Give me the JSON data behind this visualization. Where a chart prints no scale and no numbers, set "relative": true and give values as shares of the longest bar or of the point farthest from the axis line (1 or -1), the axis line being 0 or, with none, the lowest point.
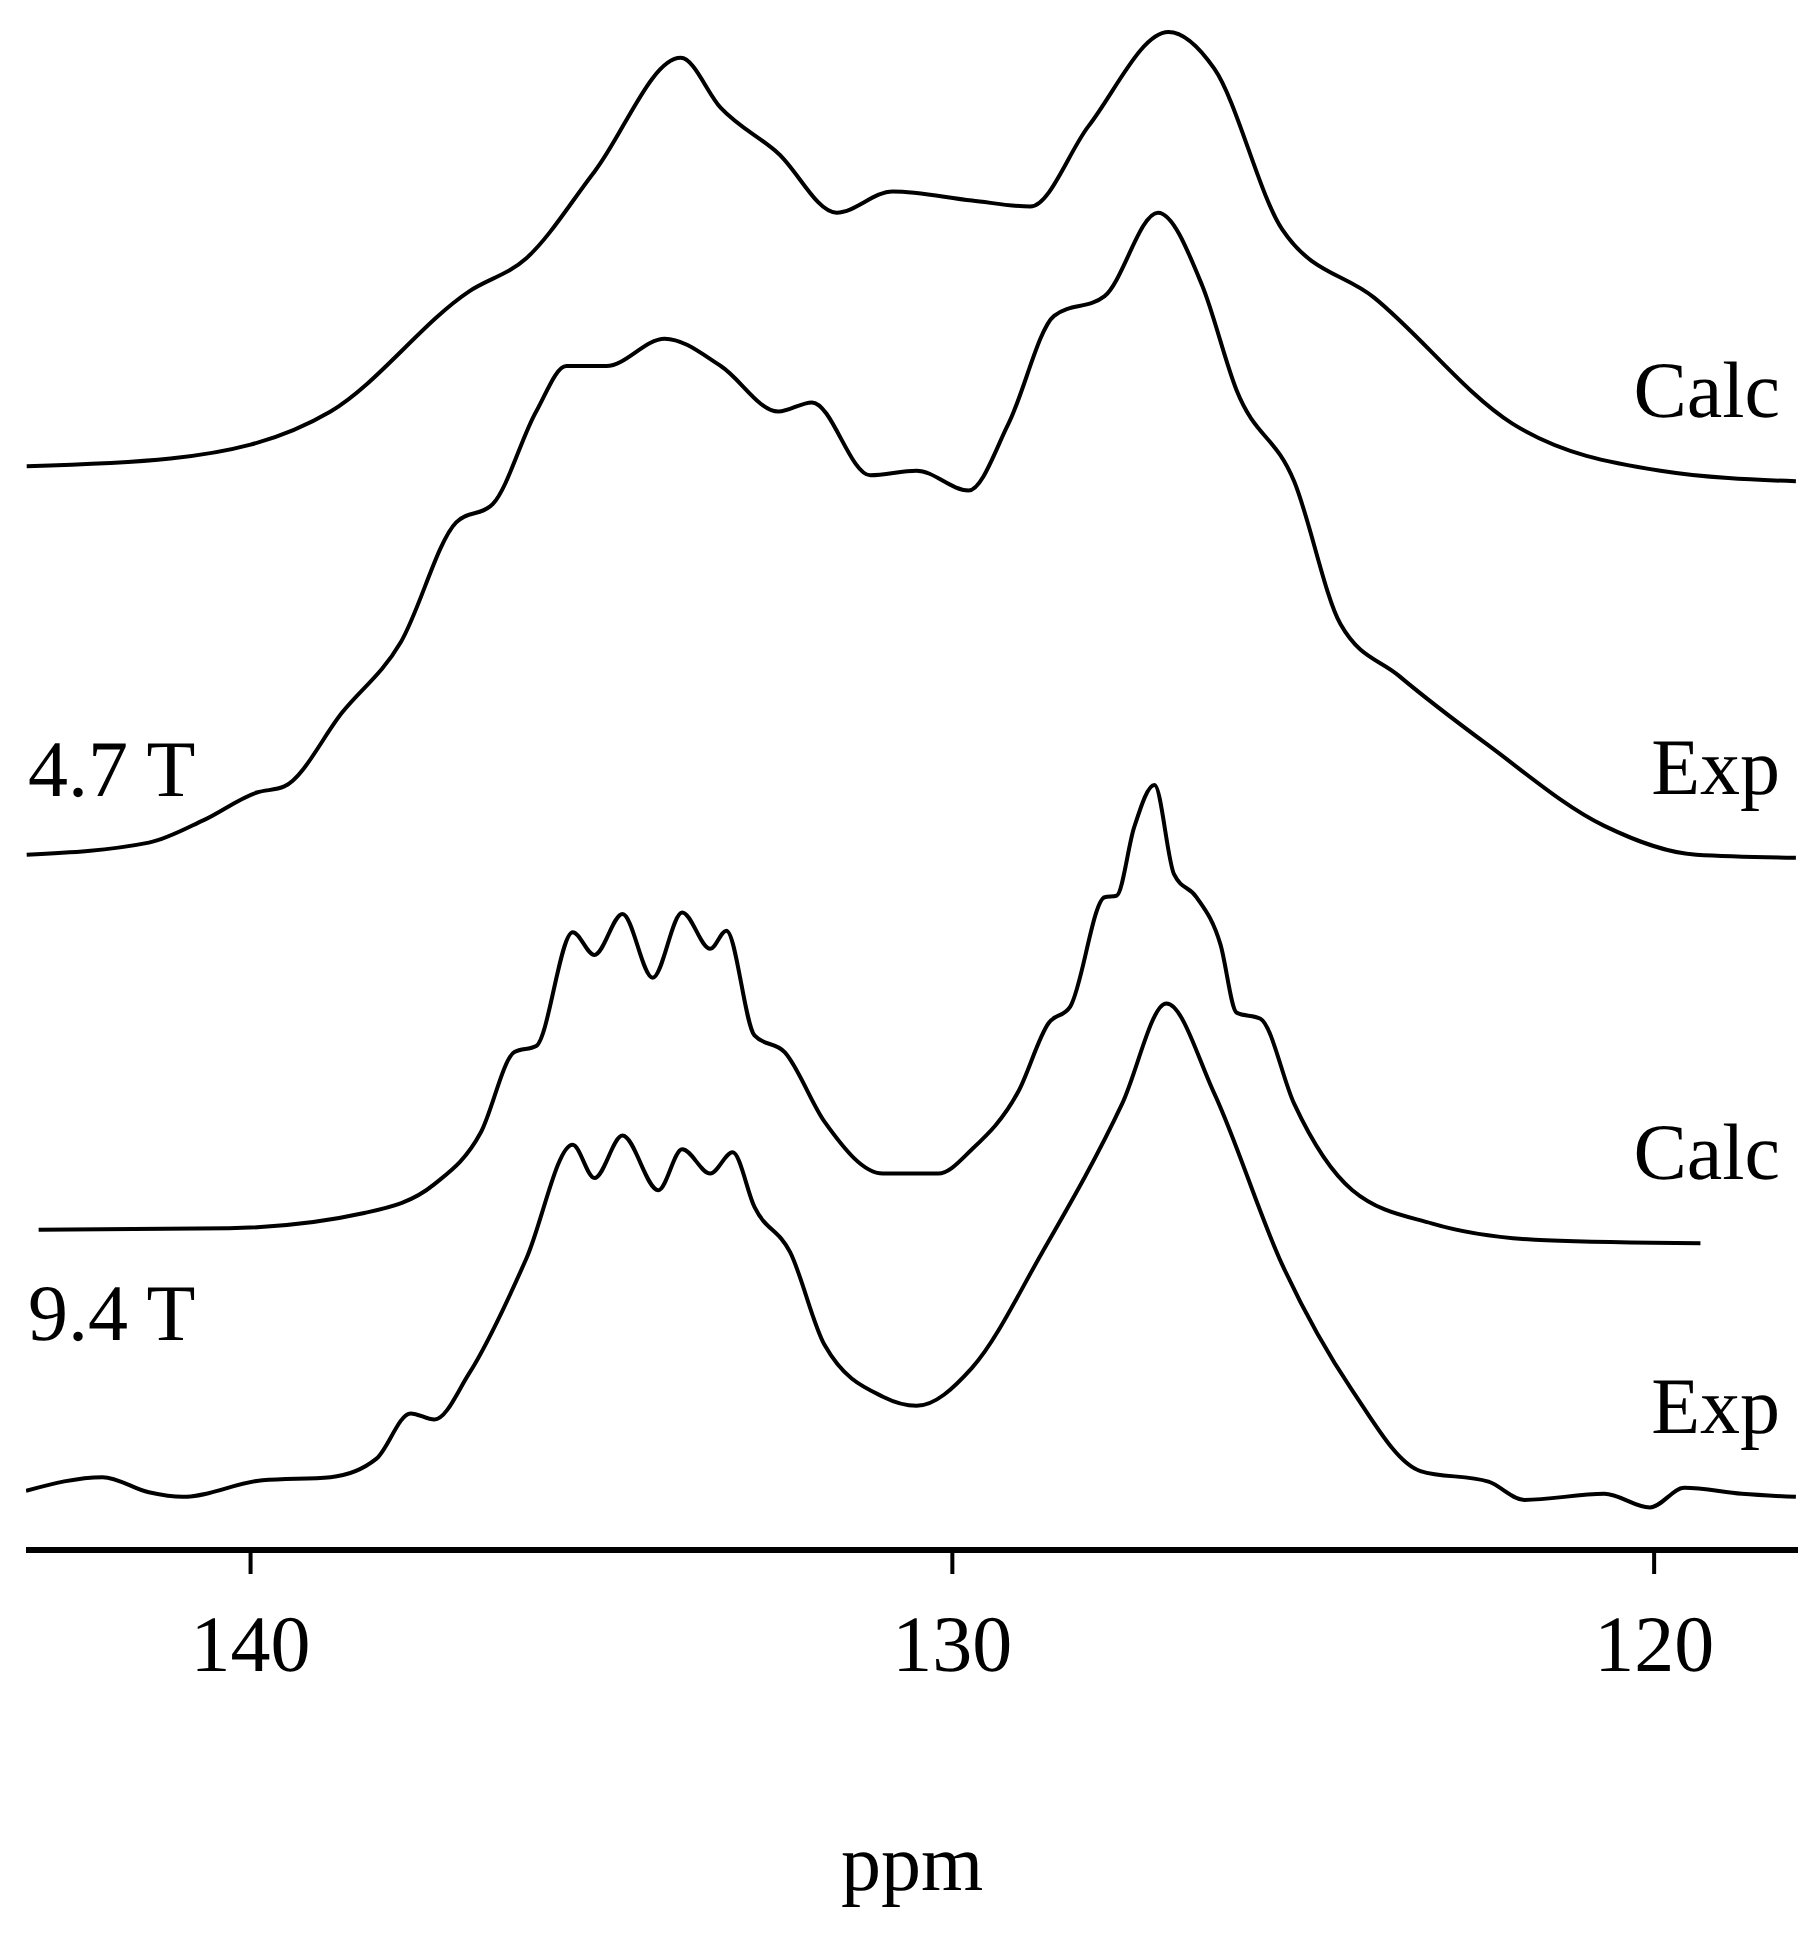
{
  "chart_data": {
    "type": "line",
    "relative": true,
    "xlabel": "ppm",
    "xlim": [
      143.2,
      117.95
    ],
    "xticks": [
      140,
      130,
      120
    ],
    "annotations": [
      "4.7 T",
      "9.4 T"
    ],
    "series": [
      {
        "name": "Calc",
        "color": "#000000",
        "x": [
          143.19,
          141.14,
          138.86,
          136.89,
          136.07,
          135.1,
          133.87,
          133.3,
          132.48,
          131.65,
          130.85,
          129.72,
          128.89,
          128.06,
          126.92,
          126.27,
          125.3,
          123.99,
          122.02,
          119.91,
          117.98
        ],
        "values": [
          0.714,
          0.719,
          0.75,
          0.829,
          0.851,
          0.908,
          0.983,
          0.95,
          0.92,
          0.881,
          0.895,
          0.889,
          0.885,
          0.938,
          1.0,
          0.976,
          0.87,
          0.825,
          0.742,
          0.711,
          0.704
        ]
      },
      {
        "name": "Exp",
        "color": "#000000",
        "x": [
          143.19,
          141.45,
          140.66,
          139.91,
          139.52,
          138.69,
          137.86,
          137.07,
          136.55,
          135.93,
          135.5,
          134.93,
          134.1,
          133.3,
          132.48,
          132.0,
          131.17,
          130.51,
          129.77,
          129.2,
          128.55,
          127.83,
          127.07,
          126.44,
          125.95,
          125.13,
          124.47,
          123.64,
          122.36,
          120.71,
          119.4,
          117.98
        ],
        "values": [
          0.458,
          0.466,
          0.481,
          0.499,
          0.503,
          0.552,
          0.598,
          0.677,
          0.689,
          0.75,
          0.78,
          0.78,
          0.798,
          0.78,
          0.75,
          0.756,
          0.708,
          0.711,
          0.698,
          0.742,
          0.813,
          0.826,
          0.881,
          0.833,
          0.764,
          0.704,
          0.61,
          0.576,
          0.53,
          0.477,
          0.458,
          0.456
        ]
      },
      {
        "name": "Calc",
        "color": "#000000",
        "x": [
          143.02,
          140.31,
          138.38,
          137.38,
          136.72,
          136.24,
          135.93,
          135.41,
          135.1,
          134.7,
          134.27,
          133.85,
          133.45,
          133.22,
          132.82,
          132.39,
          131.82,
          130.99,
          130.2,
          129.72,
          129.06,
          128.63,
          128.32,
          127.83,
          127.66,
          127.41,
          127.12,
          126.84,
          126.52,
          126.18,
          125.95,
          125.61,
          125.13,
          124.3,
          123.16,
          121.54,
          119.34
        ],
        "values": [
          0.211,
          0.212,
          0.222,
          0.241,
          0.275,
          0.328,
          0.332,
          0.407,
          0.392,
          0.419,
          0.377,
          0.42,
          0.396,
          0.408,
          0.339,
          0.328,
          0.282,
          0.248,
          0.248,
          0.264,
          0.302,
          0.347,
          0.358,
          0.43,
          0.431,
          0.476,
          0.504,
          0.445,
          0.43,
          0.399,
          0.354,
          0.35,
          0.294,
          0.237,
          0.215,
          0.204,
          0.202
        ]
      },
      {
        "name": "Exp",
        "color": "#000000",
        "x": [
          143.2,
          142.11,
          141.45,
          140.97,
          139.83,
          138.86,
          138.21,
          137.72,
          137.38,
          136.89,
          136.07,
          135.41,
          135.1,
          134.7,
          134.19,
          133.85,
          133.45,
          133.13,
          132.82,
          132.31,
          131.82,
          130.99,
          130.51,
          129.72,
          128.72,
          127.58,
          126.95,
          126.27,
          125.3,
          124.3,
          123.33,
          122.36,
          121.85,
          120.71,
          120.06,
          119.57,
          118.75,
          117.98
        ],
        "values": [
          0.039,
          0.048,
          0.038,
          0.035,
          0.046,
          0.048,
          0.06,
          0.09,
          0.086,
          0.116,
          0.192,
          0.267,
          0.245,
          0.273,
          0.237,
          0.264,
          0.248,
          0.262,
          0.226,
          0.196,
          0.135,
          0.101,
          0.095,
          0.12,
          0.196,
          0.294,
          0.36,
          0.301,
          0.188,
          0.105,
          0.052,
          0.045,
          0.033,
          0.037,
          0.028,
          0.041,
          0.037,
          0.035
        ]
      }
    ]
  }
}
